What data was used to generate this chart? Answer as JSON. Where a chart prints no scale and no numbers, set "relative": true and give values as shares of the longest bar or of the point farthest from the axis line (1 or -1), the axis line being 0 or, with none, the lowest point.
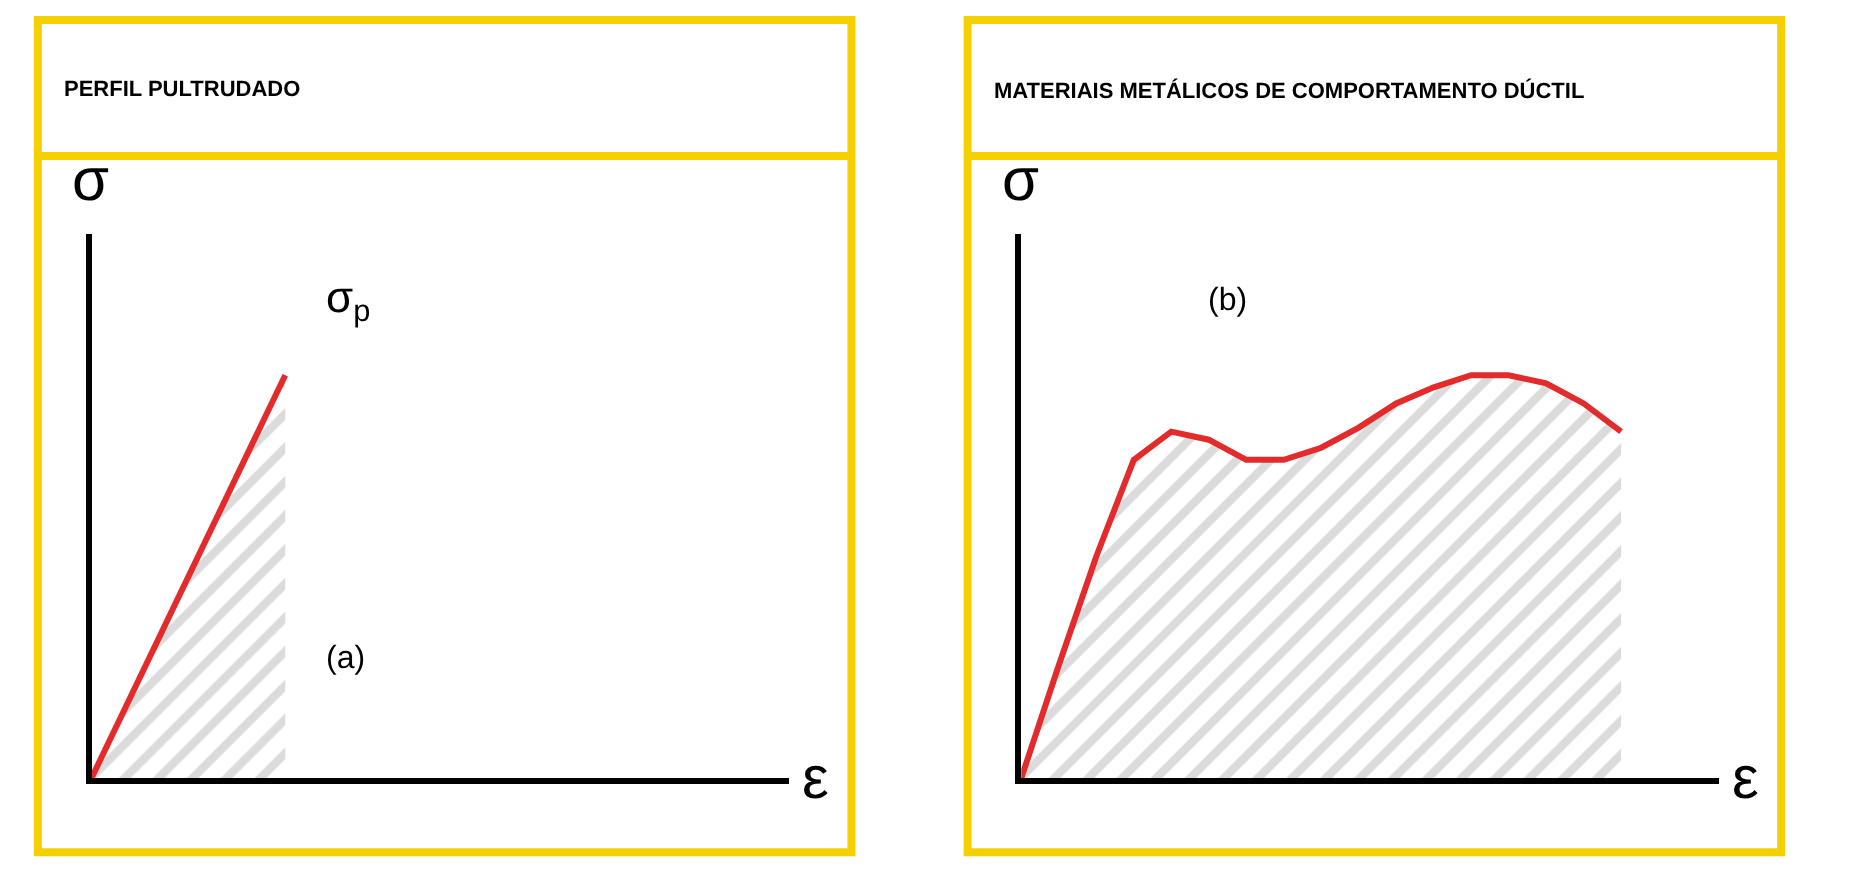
{
  "chart_data": [
    {
      "type": "area",
      "title": "PERFIL PULTRUDADO",
      "xlabel": "ε",
      "ylabel": "σ",
      "relative": true,
      "marker": "none",
      "line_style": "solid",
      "categories": [
        null,
        null,
        null,
        null
      ],
      "series": [
        {
          "color": "#e32b2b",
          "values": [
            0,
            1,
            null,
            null
          ]
        }
      ],
      "annotations": [
        "σ$_{p}$",
        "(a)"
      ]
    },
    {
      "type": "area",
      "title": "MATERIAIS METÁLICOS DE COMPORTAMENTO DÚCTIL",
      "xlabel": "ε",
      "ylabel": "σ",
      "relative": true,
      "marker": "none",
      "line_style": "solid",
      "categories": [
        null,
        null,
        null,
        null,
        null,
        null,
        null,
        null,
        null,
        null,
        null,
        null,
        null,
        null,
        null,
        null,
        null,
        null,
        null
      ],
      "series": [
        {
          "color": "#e32b2b",
          "values": [
            0,
            0.28,
            0.55,
            0.79,
            0.86,
            0.84,
            0.79,
            0.79,
            0.82,
            0.87,
            0.93,
            0.97,
            1.0,
            1.0,
            0.98,
            0.93,
            0.86,
            null,
            null
          ]
        }
      ],
      "annotations": [
        "(b)"
      ]
    }
  ]
}
